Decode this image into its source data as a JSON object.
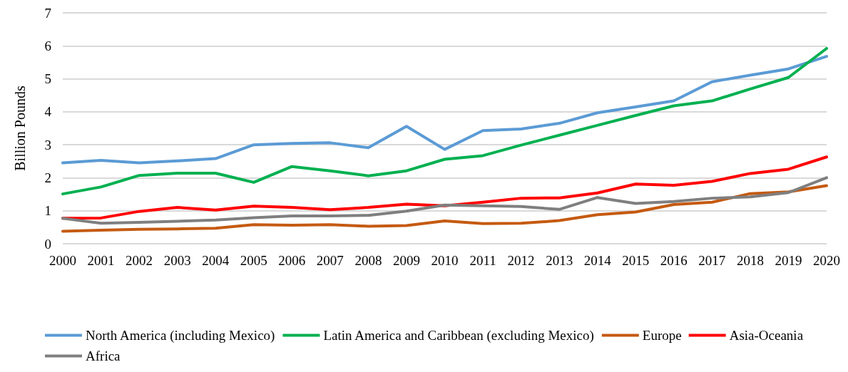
{
  "chart_data": {
    "type": "line",
    "ylabel": "Billion Pounds",
    "categories": [
      "2000",
      "2001",
      "2002",
      "2003",
      "2004",
      "2005",
      "2006",
      "2007",
      "2008",
      "2009",
      "2010",
      "2011",
      "2012",
      "2013",
      "2014",
      "2015",
      "2016",
      "2017",
      "2018",
      "2019",
      "2020"
    ],
    "ylim": [
      0,
      7
    ],
    "yticks": [
      0,
      1,
      2,
      3,
      4,
      5,
      6,
      7
    ],
    "grid": "y",
    "legend": "bottom",
    "marker": "none",
    "line_style": "solid",
    "series": [
      {
        "name": "North America (including Mexico)",
        "color": "#5b9bd5",
        "values": [
          2.45,
          2.53,
          2.45,
          2.51,
          2.58,
          3.0,
          3.04,
          3.06,
          2.91,
          3.56,
          2.86,
          3.43,
          3.48,
          3.65,
          3.97,
          4.15,
          4.33,
          4.91,
          5.11,
          5.3,
          5.68
        ]
      },
      {
        "name": "Latin America and Caribbean (excluding Mexico)",
        "color": "#00b050",
        "values": [
          1.51,
          1.72,
          2.07,
          2.14,
          2.14,
          1.86,
          2.34,
          2.21,
          2.06,
          2.21,
          2.56,
          2.67,
          2.99,
          3.29,
          3.59,
          3.89,
          4.18,
          4.33,
          4.69,
          5.04,
          5.92
        ]
      },
      {
        "name": "Europe",
        "color": "#c55a11",
        "values": [
          0.38,
          0.41,
          0.44,
          0.45,
          0.47,
          0.58,
          0.56,
          0.58,
          0.53,
          0.55,
          0.69,
          0.61,
          0.62,
          0.7,
          0.88,
          0.96,
          1.19,
          1.26,
          1.52,
          1.57,
          1.76
        ]
      },
      {
        "name": "Asia-Oceania",
        "color": "#ff0000",
        "values": [
          0.77,
          0.78,
          0.98,
          1.1,
          1.02,
          1.14,
          1.1,
          1.03,
          1.1,
          1.2,
          1.15,
          1.26,
          1.38,
          1.39,
          1.54,
          1.81,
          1.77,
          1.89,
          2.13,
          2.26,
          2.63
        ]
      },
      {
        "name": "Africa",
        "color": "#7f7f7f",
        "values": [
          0.77,
          0.62,
          0.65,
          0.68,
          0.72,
          0.79,
          0.84,
          0.84,
          0.86,
          0.99,
          1.17,
          1.15,
          1.13,
          1.04,
          1.4,
          1.22,
          1.28,
          1.38,
          1.42,
          1.55,
          2.0
        ]
      }
    ]
  }
}
